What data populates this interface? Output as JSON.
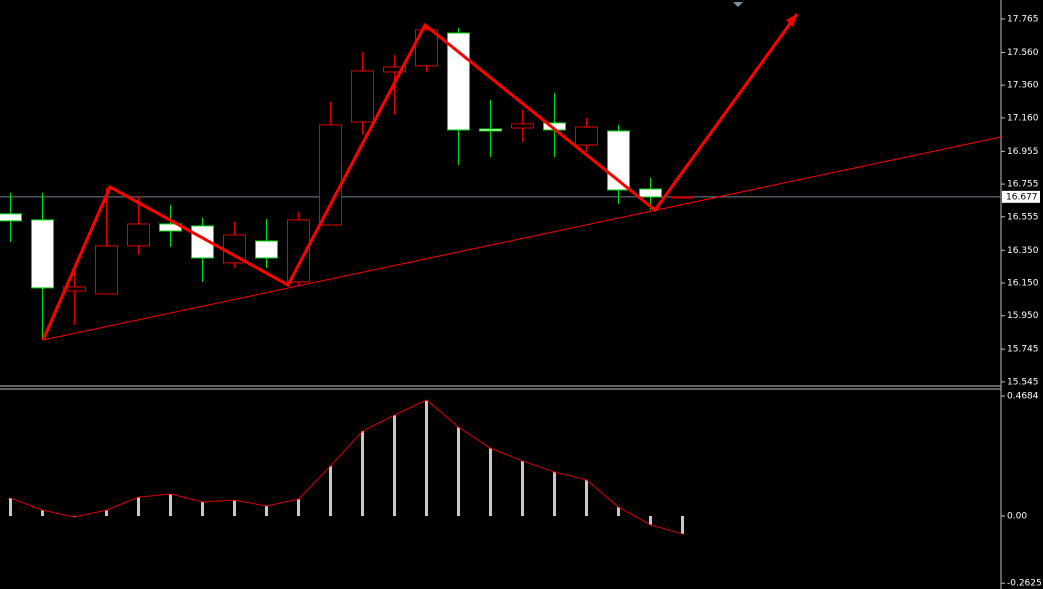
{
  "chart_data": [
    {
      "type": "candlestick",
      "open": [
        16.573,
        16.536,
        16.101,
        16.083,
        16.377,
        16.511,
        16.499,
        16.273,
        16.407,
        16.157,
        16.505,
        17.135,
        17.441,
        17.478,
        17.679,
        17.092,
        17.098,
        17.129,
        16.994,
        17.08,
        16.725,
        16.67
      ],
      "high": [
        16.701,
        16.701,
        16.242,
        16.731,
        16.683,
        16.627,
        16.548,
        16.523,
        16.542,
        16.585,
        17.257,
        17.563,
        17.545,
        17.722,
        17.71,
        17.27,
        17.208,
        17.312,
        17.16,
        17.117,
        16.793,
        16.683
      ],
      "low": [
        16.401,
        15.802,
        15.893,
        16.083,
        16.322,
        16.371,
        16.157,
        16.242,
        16.242,
        16.132,
        16.505,
        17.056,
        17.178,
        17.441,
        16.872,
        16.921,
        17.013,
        16.921,
        16.952,
        16.634,
        16.597,
        16.665
      ],
      "close": [
        16.53,
        16.12,
        16.126,
        16.377,
        16.511,
        16.468,
        16.303,
        16.444,
        16.303,
        16.536,
        17.117,
        17.447,
        17.471,
        17.698,
        17.086,
        17.08,
        17.123,
        17.086,
        17.104,
        16.719,
        16.676,
        16.677
      ],
      "up_color": "#e00000",
      "down_color": "#00e000",
      "current_price": 16.677,
      "ylim": [
        15.526,
        17.881
      ],
      "yticks": [
        17.765,
        {
          "value": 17.56,
          "label": "17.560"
        },
        {
          "value": 17.36,
          "label": "17.360"
        },
        {
          "value": 17.16,
          "label": "17.160"
        },
        16.955,
        16.755,
        16.555,
        {
          "value": 16.35,
          "label": "16.350"
        },
        {
          "value": 16.15,
          "label": "16.150"
        },
        {
          "value": 15.95,
          "label": "15.950"
        },
        15.745,
        15.545
      ]
    },
    {
      "type": "histogram",
      "values": [
        0.07,
        0.023,
        -0.004,
        0.023,
        0.074,
        0.086,
        0.055,
        0.062,
        0.039,
        0.066,
        0.195,
        0.332,
        0.394,
        0.453,
        0.347,
        0.265,
        0.215,
        0.172,
        0.141,
        0.035,
        -0.035,
        -0.07
      ],
      "color": "#c8c8c8",
      "line_color": "#e00000",
      "ylim": [
        -0.285,
        0.492
      ],
      "yticks": [
        0.4684,
        {
          "value": 0,
          "label": "0.00"
        },
        -0.2625
      ]
    }
  ]
}
